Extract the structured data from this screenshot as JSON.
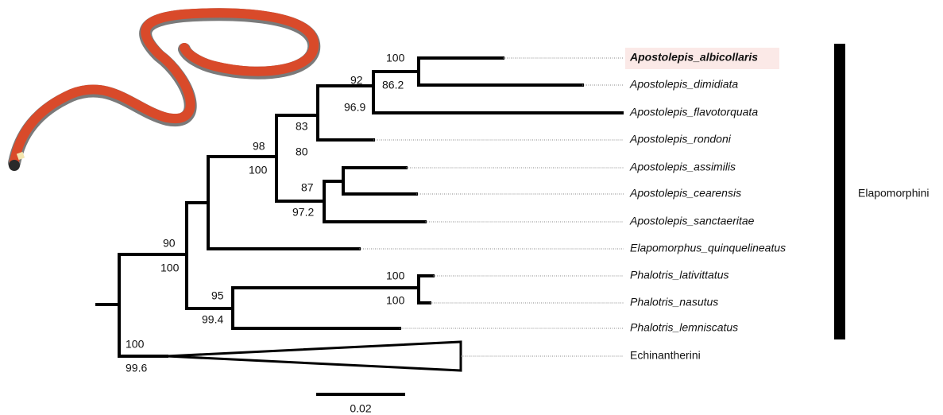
{
  "tips": [
    "Apostolepis_albicollaris",
    "Apostolepis_dimidiata",
    "Apostolepis_flavotorquata",
    "Apostolepis_rondoni",
    "Apostolepis_assimilis",
    "Apostolepis_cearensis",
    "Apostolepis_sanctaeritae",
    "Elapomorphus_quinquelineatus",
    "Phalotris_lativittatus",
    "Phalotris_nasutus",
    "Phalotris_lemniscatus",
    "Echinantherini"
  ],
  "clade_label": "Elapomorphini",
  "support": [
    100,
    92,
    86.2,
    83,
    96.9,
    80,
    98,
    100,
    87,
    97.2,
    90,
    100,
    95,
    99.4,
    100,
    100,
    100,
    99.6
  ],
  "scale_label": "0.02"
}
